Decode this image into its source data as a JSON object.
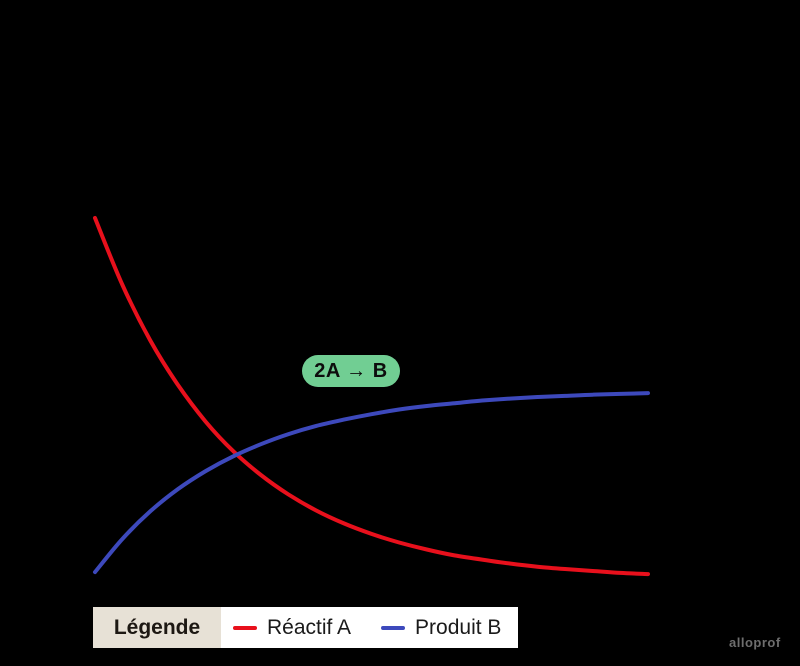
{
  "chart_data": {
    "type": "line",
    "title": "",
    "xlabel": "",
    "ylabel": "",
    "x_range": [
      0,
      10
    ],
    "y_range": [
      0,
      10
    ],
    "grid": false,
    "legend_position": "bottom",
    "annotation": {
      "label": "2A → B",
      "background": "#71ce93",
      "text_color": "#0d0d0d"
    },
    "series": [
      {
        "name": "Réactif A",
        "color": "#e8101c",
        "x": [
          0,
          0.5,
          1,
          1.5,
          2,
          2.5,
          3,
          3.5,
          4,
          4.5,
          5,
          5.5,
          6,
          6.5,
          7,
          7.5,
          8,
          8.5,
          9,
          9.5,
          10
        ],
        "values": [
          9.41,
          7.68,
          6.27,
          5.13,
          4.19,
          3.43,
          2.82,
          2.32,
          1.91,
          1.58,
          1.31,
          1.09,
          0.91,
          0.76,
          0.65,
          0.55,
          0.47,
          0.41,
          0.36,
          0.31,
          0.28
        ]
      },
      {
        "name": "Produit B",
        "color": "#3d49bc",
        "x": [
          0,
          0.5,
          1,
          1.5,
          2,
          2.5,
          3,
          3.5,
          4,
          4.5,
          5,
          5.5,
          6,
          6.5,
          7,
          7.5,
          8,
          8.5,
          9,
          9.5,
          10
        ],
        "values": [
          0.33,
          1.19,
          1.89,
          2.46,
          2.92,
          3.3,
          3.61,
          3.87,
          4.08,
          4.24,
          4.38,
          4.5,
          4.59,
          4.66,
          4.73,
          4.78,
          4.82,
          4.85,
          4.88,
          4.9,
          4.92
        ]
      }
    ]
  },
  "legend": {
    "title": "Légende"
  },
  "watermark": "alloprof",
  "colors": {
    "background": "#000000",
    "legend_title_bg": "#e7e1d6",
    "legend_body_bg": "#ffffff",
    "legend_text": "#1a1a1a",
    "watermark": "#6e6e6e"
  }
}
